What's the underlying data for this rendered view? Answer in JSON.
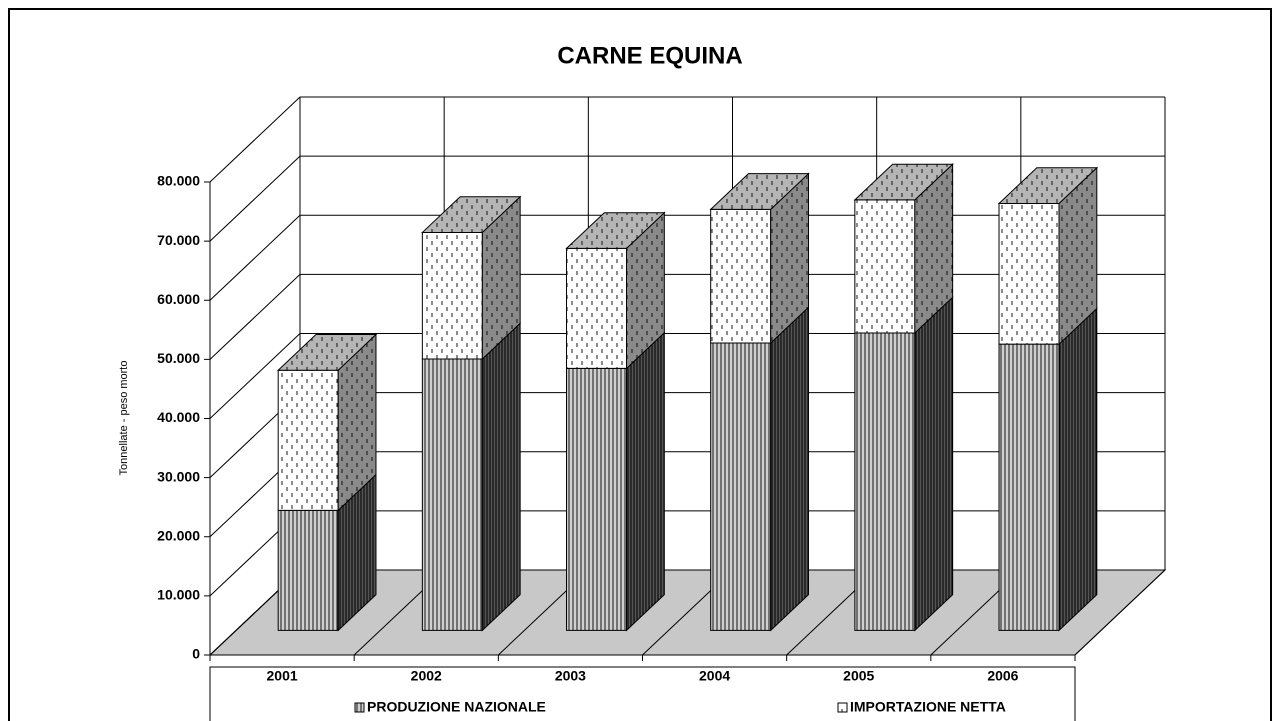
{
  "chart_data": {
    "type": "bar3d_stacked",
    "title": "CARNE EQUINA",
    "y_label": "Tonnellate - peso morto",
    "categories": [
      "2001",
      "2002",
      "2003",
      "2004",
      "2005",
      "2006"
    ],
    "series": [
      {
        "name": "PRODUZIONE NAZIONALE",
        "color": "#cfcfcf",
        "values": [
          20300,
          45900,
          44300,
          48600,
          50300,
          48400
        ]
      },
      {
        "name": "IMPORTAZIONE NETTA",
        "color": "#ffffff",
        "values": [
          23700,
          21400,
          20300,
          22600,
          22500,
          23800
        ]
      }
    ],
    "ylim": [
      0,
      80000
    ],
    "yticks": [
      0,
      {
        "value": 10000,
        "label": "10.000"
      },
      {
        "value": 20000,
        "label": "20.000"
      },
      {
        "value": 30000,
        "label": "30.000"
      },
      {
        "value": 40000,
        "label": "40.000"
      },
      {
        "value": 50000,
        "label": "50.000"
      },
      {
        "value": 60000,
        "label": "60.000"
      },
      {
        "value": 70000,
        "label": "70.000"
      },
      {
        "value": 80000,
        "label": "80.000"
      }
    ],
    "grid": true,
    "stacked": true,
    "legend": "bottom"
  }
}
